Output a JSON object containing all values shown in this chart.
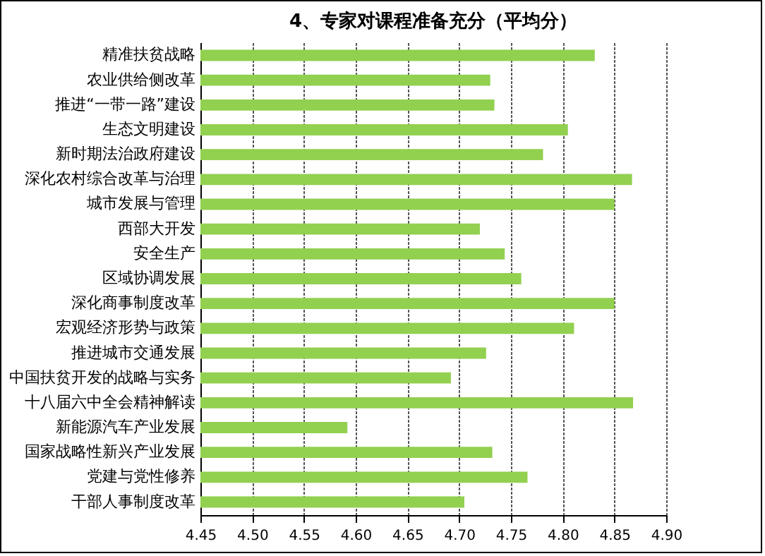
{
  "chart_data": {
    "type": "bar",
    "orientation": "horizontal",
    "title": "4、专家对课程准备充分（平均分）",
    "categories": [
      "精准扶贫战略",
      "农业供给侧改革",
      "推进“一带一路”建设",
      "生态文明建设",
      "新时期法治政府建设",
      "深化农村综合改革与治理",
      "城市发展与管理",
      "西部大开发",
      "安全生产",
      "区域协调发展",
      "深化商事制度改革",
      "宏观经济形势与政策",
      "推进城市交通发展",
      "中国扶贫开发的战略与实务",
      "十八届六中全会精神解读",
      "新能源汽车产业发展",
      "国家战略性新兴产业发展",
      "党建与党性修养",
      "干部人事制度改革"
    ],
    "values": [
      4.831,
      4.73,
      4.734,
      4.805,
      4.781,
      4.867,
      4.85,
      4.72,
      4.744,
      4.76,
      4.85,
      4.811,
      4.726,
      4.692,
      4.868,
      4.592,
      4.732,
      4.766,
      4.705
    ],
    "color": "#92d050",
    "xlim": [
      4.45,
      4.9
    ],
    "xticks": [
      {
        "value": 4.45,
        "label": "4.45"
      },
      {
        "value": 4.5,
        "label": "4.50"
      },
      {
        "value": 4.55,
        "label": "4.55"
      },
      {
        "value": 4.6,
        "label": "4.60"
      },
      {
        "value": 4.65,
        "label": "4.65"
      },
      {
        "value": 4.7,
        "label": "4.70"
      },
      {
        "value": 4.75,
        "label": "4.75"
      },
      {
        "value": 4.8,
        "label": "4.80"
      },
      {
        "value": 4.85,
        "label": "4.85"
      },
      {
        "value": 4.9,
        "label": "4.90"
      }
    ],
    "grid": "x"
  }
}
